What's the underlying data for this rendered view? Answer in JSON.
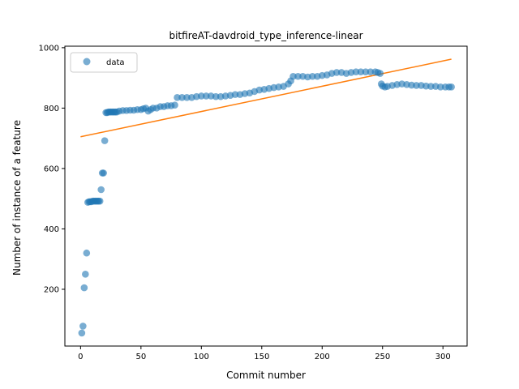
{
  "chart_data": {
    "type": "scatter",
    "title": "bitfireAT-davdroid_type_inference-linear",
    "xlabel": "Commit number",
    "ylabel": "Number of instance of a feature",
    "xlim": [
      -13,
      320
    ],
    "ylim": [
      12,
      1005
    ],
    "xticks": [
      0,
      50,
      100,
      150,
      200,
      250,
      300
    ],
    "yticks": [
      200,
      400,
      600,
      800,
      1000
    ],
    "grid": false,
    "legend_position": "top-left",
    "colors": {
      "scatter": "#1f77b4",
      "fit": "#ff7f0e"
    },
    "series": [
      {
        "name": "data",
        "kind": "scatter",
        "points": [
          [
            1,
            55
          ],
          [
            2,
            78
          ],
          [
            3,
            205
          ],
          [
            4,
            250
          ],
          [
            5,
            320
          ],
          [
            6,
            488
          ],
          [
            7,
            490
          ],
          [
            8,
            490
          ],
          [
            9,
            490
          ],
          [
            10,
            492
          ],
          [
            11,
            492
          ],
          [
            12,
            492
          ],
          [
            13,
            492
          ],
          [
            14,
            492
          ],
          [
            15,
            492
          ],
          [
            16,
            492
          ],
          [
            17,
            530
          ],
          [
            18,
            585
          ],
          [
            19,
            585
          ],
          [
            20,
            692
          ],
          [
            21,
            785
          ],
          [
            22,
            785
          ],
          [
            23,
            787
          ],
          [
            24,
            787
          ],
          [
            25,
            787
          ],
          [
            26,
            787
          ],
          [
            27,
            787
          ],
          [
            28,
            787
          ],
          [
            29,
            787
          ],
          [
            30,
            787
          ],
          [
            32,
            790
          ],
          [
            35,
            792
          ],
          [
            38,
            792
          ],
          [
            41,
            793
          ],
          [
            44,
            793
          ],
          [
            47,
            795
          ],
          [
            50,
            795
          ],
          [
            52,
            798
          ],
          [
            54,
            800
          ],
          [
            56,
            790
          ],
          [
            58,
            795
          ],
          [
            60,
            800
          ],
          [
            63,
            800
          ],
          [
            66,
            805
          ],
          [
            69,
            805
          ],
          [
            72,
            808
          ],
          [
            75,
            808
          ],
          [
            78,
            810
          ],
          [
            80,
            835
          ],
          [
            84,
            835
          ],
          [
            88,
            835
          ],
          [
            92,
            835
          ],
          [
            96,
            838
          ],
          [
            100,
            840
          ],
          [
            104,
            840
          ],
          [
            108,
            840
          ],
          [
            112,
            838
          ],
          [
            116,
            838
          ],
          [
            120,
            840
          ],
          [
            124,
            842
          ],
          [
            128,
            845
          ],
          [
            132,
            845
          ],
          [
            136,
            848
          ],
          [
            140,
            850
          ],
          [
            144,
            855
          ],
          [
            148,
            860
          ],
          [
            152,
            862
          ],
          [
            156,
            865
          ],
          [
            160,
            868
          ],
          [
            164,
            870
          ],
          [
            168,
            872
          ],
          [
            172,
            880
          ],
          [
            174,
            890
          ],
          [
            176,
            905
          ],
          [
            180,
            905
          ],
          [
            184,
            905
          ],
          [
            188,
            903
          ],
          [
            192,
            905
          ],
          [
            196,
            905
          ],
          [
            200,
            908
          ],
          [
            204,
            910
          ],
          [
            208,
            915
          ],
          [
            212,
            918
          ],
          [
            216,
            918
          ],
          [
            220,
            915
          ],
          [
            224,
            918
          ],
          [
            228,
            920
          ],
          [
            232,
            920
          ],
          [
            236,
            920
          ],
          [
            240,
            920
          ],
          [
            244,
            920
          ],
          [
            246,
            918
          ],
          [
            248,
            915
          ],
          [
            249,
            880
          ],
          [
            250,
            873
          ],
          [
            252,
            870
          ],
          [
            254,
            872
          ],
          [
            258,
            875
          ],
          [
            262,
            878
          ],
          [
            266,
            880
          ],
          [
            270,
            878
          ],
          [
            274,
            876
          ],
          [
            278,
            875
          ],
          [
            282,
            875
          ],
          [
            286,
            873
          ],
          [
            290,
            872
          ],
          [
            294,
            872
          ],
          [
            298,
            870
          ],
          [
            302,
            870
          ],
          [
            305,
            870
          ],
          [
            307,
            870
          ]
        ]
      },
      {
        "name": "",
        "kind": "line",
        "points": [
          [
            0,
            705
          ],
          [
            307,
            962
          ]
        ]
      }
    ]
  }
}
